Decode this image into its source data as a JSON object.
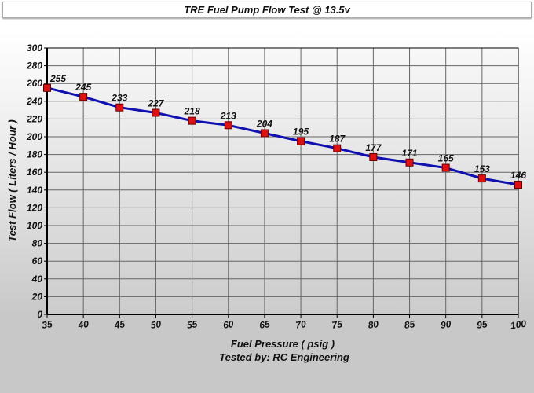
{
  "chart_data": {
    "type": "line",
    "title": "TRE Fuel Pump Flow Test @ 13.5v",
    "xlabel": "Fuel Pressure ( psig )",
    "subtitle": "Tested by: RC Engineering",
    "ylabel": "Test Flow ( Liters / Hour )",
    "x": [
      35,
      40,
      45,
      50,
      55,
      60,
      65,
      70,
      75,
      80,
      85,
      90,
      95,
      100
    ],
    "values": [
      255,
      245,
      233,
      227,
      218,
      213,
      204,
      195,
      187,
      177,
      171,
      165,
      153,
      146
    ],
    "xlim": [
      35,
      100
    ],
    "ylim": [
      0,
      300
    ],
    "xticks": [
      35,
      40,
      45,
      50,
      55,
      60,
      65,
      70,
      75,
      80,
      85,
      90,
      95,
      100
    ],
    "yticks": [
      0,
      20,
      40,
      60,
      80,
      100,
      120,
      140,
      160,
      180,
      200,
      220,
      240,
      260,
      280,
      300
    ],
    "grid": true,
    "data_labels": true,
    "line_color": "#1010b0",
    "marker_color": "#dd1111"
  }
}
